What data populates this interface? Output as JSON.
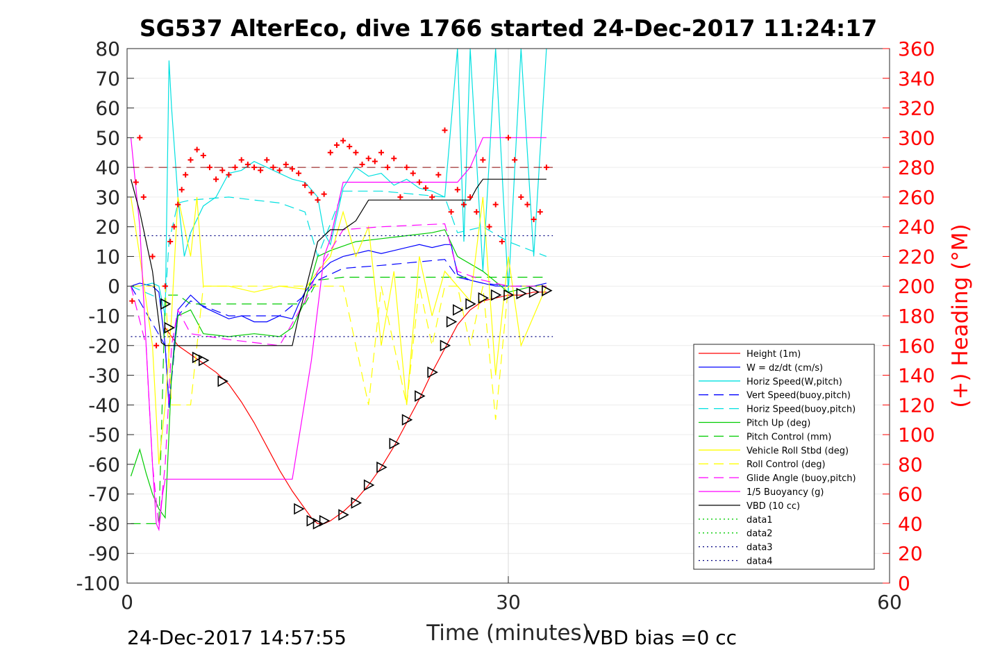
{
  "chart_data": {
    "type": "line",
    "title": "SG537 AlterEco, dive 1766 started 24-Dec-2017 11:24:17",
    "xlabel": "Time (minutes)",
    "ylabel": "",
    "y2label": "(+) Heading (°M)",
    "xlim": [
      0,
      60
    ],
    "ylim": [
      -100,
      80
    ],
    "y2lim": [
      0,
      360
    ],
    "xticks": [
      "0",
      "30",
      "60"
    ],
    "yticks": [
      "80",
      "70",
      "60",
      "50",
      "40",
      "30",
      "20",
      "10",
      "0",
      "-10",
      "-20",
      "-30",
      "-40",
      "-50",
      "-60",
      "-70",
      "-80",
      "-90",
      "-100"
    ],
    "y2ticks": [
      "360",
      "340",
      "320",
      "300",
      "280",
      "260",
      "240",
      "220",
      "200",
      "180",
      "160",
      "140",
      "120",
      "100",
      "80",
      "60",
      "40",
      "20",
      "0"
    ],
    "grid": "vertical at x=30",
    "legend_position": "bottom-right inside",
    "series": [
      {
        "name": "Height (1m)",
        "color": "#ff0000",
        "style": "solid",
        "x": [
          3,
          4,
          5,
          6,
          7,
          8,
          9,
          10,
          11,
          12,
          13,
          14,
          14.5,
          15,
          15.5,
          16,
          17,
          18,
          19,
          20,
          21,
          22,
          23,
          24,
          25,
          26,
          27,
          28,
          29,
          30,
          31,
          32,
          33
        ],
        "y": [
          -14,
          -20,
          -23,
          -26,
          -29,
          -33,
          -39,
          -46,
          -54,
          -62,
          -69,
          -75,
          -78,
          -80,
          -80,
          -79,
          -76,
          -72,
          -67,
          -61,
          -54,
          -46,
          -38,
          -29,
          -21,
          -13,
          -8,
          -5,
          -4,
          -3,
          -3,
          -2,
          -2
        ]
      },
      {
        "name": "W = dz/dt (cm/s)",
        "color": "#0000ff",
        "style": "solid",
        "x": [
          0.3,
          1,
          2,
          2.5,
          3,
          3.3,
          3.7,
          4,
          5,
          6,
          7,
          8,
          9,
          10,
          11,
          12,
          13,
          13.5,
          14,
          15,
          16,
          17,
          18,
          19,
          20,
          21,
          22,
          23,
          24,
          25,
          25.5,
          26,
          27,
          28,
          29,
          30,
          31,
          32,
          33
        ],
        "y": [
          0,
          1,
          0,
          -2,
          -20,
          -41,
          -20,
          -8,
          -3,
          -7,
          -9,
          -11,
          -10,
          -12,
          -12,
          -10,
          -11,
          -6,
          -2,
          4,
          8,
          10,
          11,
          12,
          11,
          12,
          13,
          14,
          13,
          14,
          14,
          4,
          2,
          1,
          0,
          0,
          0,
          0,
          1
        ]
      },
      {
        "name": "Horiz Speed(W,pitch)",
        "color": "#00e0e0",
        "style": "solid",
        "x": [
          0.3,
          1,
          2,
          2.5,
          3,
          3.3,
          3.5,
          4,
          4.5,
          5,
          6,
          7,
          8,
          9,
          10,
          11,
          12,
          13,
          14,
          15,
          15.5,
          16,
          17,
          18,
          19,
          20,
          21,
          22,
          23,
          24,
          25,
          26,
          26.5,
          27,
          28,
          29,
          30,
          31,
          32,
          33
        ],
        "y": [
          0,
          0,
          1,
          0,
          -10,
          76,
          60,
          30,
          10,
          18,
          27,
          30,
          38,
          39,
          42,
          40,
          38,
          36,
          35,
          30,
          18,
          14,
          33,
          40,
          37,
          38,
          34,
          36,
          33,
          32,
          30,
          80,
          15,
          80,
          5,
          80,
          -2,
          80,
          10,
          80
        ]
      },
      {
        "name": "Vert Speed(buoy,pitch)",
        "color": "#0000ff",
        "style": "dashed",
        "x": [
          0.3,
          3,
          3.3,
          4,
          5,
          8,
          12,
          14,
          15,
          17,
          20,
          25,
          26,
          28,
          30,
          33
        ],
        "y": [
          0,
          -20,
          -40,
          -10,
          -5,
          -10,
          -10,
          -3,
          2,
          6,
          7,
          9,
          3,
          1,
          0,
          0
        ]
      },
      {
        "name": "Horiz Speed(buoy,pitch)",
        "color": "#00e0e0",
        "style": "dashed",
        "x": [
          0.3,
          3,
          3.3,
          4,
          5,
          8,
          12,
          14,
          15,
          17,
          20,
          25,
          26,
          28,
          30,
          33
        ],
        "y": [
          0,
          -5,
          15,
          28,
          29,
          30,
          28,
          25,
          10,
          32,
          32,
          30,
          18,
          20,
          15,
          10
        ]
      },
      {
        "name": "Pitch Up (deg)",
        "color": "#00cc00",
        "style": "solid",
        "x": [
          0.3,
          1,
          1.5,
          2,
          2.5,
          3,
          3.5,
          4,
          5,
          6,
          8,
          10,
          12,
          13,
          14,
          15,
          16,
          18,
          20,
          22,
          24,
          25,
          26,
          28,
          30,
          32,
          33
        ],
        "y": [
          -64,
          -55,
          -63,
          -70,
          -75,
          -78,
          -30,
          -10,
          -8,
          -16,
          -17,
          -16,
          -17,
          -14,
          -5,
          10,
          12,
          15,
          16,
          17,
          18,
          19,
          10,
          5,
          -2,
          0,
          0
        ]
      },
      {
        "name": "Pitch Control (mm)",
        "color": "#00cc00",
        "style": "dashed",
        "x": [
          0.3,
          2.5,
          3,
          4,
          5,
          14,
          15,
          17,
          25,
          26,
          33
        ],
        "y": [
          -80,
          -80,
          -3,
          -3,
          -6,
          -6,
          2,
          3,
          3,
          3,
          3
        ]
      },
      {
        "name": "Vehicle Roll Stbd (deg)",
        "color": "#ffff00",
        "style": "solid",
        "x": [
          0.3,
          1,
          2,
          2.5,
          3,
          3.5,
          4,
          5,
          5.5,
          6,
          8,
          10,
          12,
          14,
          15,
          16,
          17,
          18,
          19,
          20,
          21,
          22,
          23,
          24,
          25,
          26,
          27,
          28,
          29,
          30,
          31,
          32,
          33
        ],
        "y": [
          30,
          10,
          -20,
          -60,
          -40,
          -10,
          30,
          10,
          30,
          0,
          0,
          -2,
          0,
          -1,
          5,
          10,
          25,
          10,
          20,
          -20,
          5,
          -40,
          10,
          -10,
          5,
          0,
          -5,
          30,
          -30,
          10,
          -20,
          -10,
          0
        ]
      },
      {
        "name": "Roll Control (deg)",
        "color": "#ffff00",
        "style": "dashed",
        "x": [
          0.3,
          3,
          3.5,
          4,
          5,
          6,
          14,
          15,
          17,
          18,
          19,
          20,
          21,
          22,
          23,
          24,
          25,
          26,
          27,
          28,
          29,
          30,
          33
        ],
        "y": [
          0,
          0,
          -40,
          -40,
          -40,
          0,
          0,
          0,
          0,
          -20,
          -40,
          0,
          -20,
          -40,
          0,
          -20,
          0,
          0,
          -20,
          0,
          -45,
          0,
          0
        ]
      },
      {
        "name": "Glide Angle (buoy,pitch)",
        "color": "#ff00ff",
        "style": "dashed",
        "x": [
          0.3,
          1.5,
          2,
          2.5,
          3,
          3.5,
          4,
          5,
          8,
          12,
          14,
          15,
          17,
          20,
          25,
          26,
          28,
          30,
          33
        ],
        "y": [
          0,
          -20,
          -60,
          -81,
          -60,
          -20,
          -8,
          -16,
          -18,
          -20,
          -5,
          5,
          19,
          20,
          21,
          5,
          2,
          0,
          0
        ]
      },
      {
        "name": "1/5 Buoyancy (g)",
        "color": "#ff00ff",
        "style": "solid",
        "x": [
          0.3,
          1,
          2,
          2.3,
          2.5,
          2.8,
          3,
          4,
          8,
          13,
          14.5,
          15.5,
          16,
          17,
          25,
          26,
          27,
          28,
          33
        ],
        "y": [
          50,
          20,
          -60,
          -80,
          -82,
          -70,
          -65,
          -65,
          -65,
          -65,
          -25,
          10,
          16,
          35,
          35,
          35,
          40,
          50,
          50
        ]
      },
      {
        "name": "VBD (10 cc)",
        "color": "#000000",
        "style": "solid",
        "x": [
          0.3,
          1,
          2,
          2.7,
          3,
          4,
          13,
          13.5,
          14,
          15,
          16,
          17,
          18,
          19,
          25,
          26,
          27,
          27.5,
          28,
          33
        ],
        "y": [
          36,
          25,
          5,
          -19,
          -20,
          -20,
          -20,
          -10,
          -2,
          15,
          19,
          19,
          22,
          29,
          29,
          29,
          29,
          33,
          36,
          36
        ]
      },
      {
        "name": "data1",
        "color": "#00cc00",
        "style": "dotted",
        "x": [],
        "y": []
      },
      {
        "name": "data2",
        "color": "#00cc00",
        "style": "dotted",
        "x": [],
        "y": []
      },
      {
        "name": "data3",
        "color": "#000080",
        "style": "dotted",
        "x": [
          0.3,
          33.5
        ],
        "y": [
          17,
          17
        ]
      },
      {
        "name": "data4",
        "color": "#000080",
        "style": "dotted",
        "x": [
          0.3,
          33.5
        ],
        "y": [
          -17,
          -17
        ]
      }
    ],
    "heading_reference_y2": 280,
    "heading_markers_y2": {
      "color": "#ff0000",
      "x": [
        0.4,
        0.7,
        1,
        1.3,
        2,
        2.3,
        3,
        3.4,
        3.7,
        4,
        4.3,
        4.6,
        5,
        5.5,
        6,
        6.5,
        7,
        7.5,
        8,
        8.5,
        9,
        9.5,
        10,
        10.5,
        11,
        11.5,
        12,
        12.5,
        13,
        13.5,
        14,
        14.5,
        15,
        15.5,
        16,
        16.5,
        17,
        17.5,
        18,
        18.5,
        19,
        19.5,
        20,
        20.5,
        21,
        21.5,
        22,
        22.5,
        23,
        23.5,
        24,
        24.5,
        25,
        25.5,
        26,
        26.5,
        27,
        27.5,
        28,
        28.5,
        29,
        29.5,
        30,
        30.5,
        31,
        31.5,
        32,
        32.5,
        33
      ],
      "y": [
        190,
        270,
        300,
        260,
        220,
        160,
        200,
        230,
        240,
        255,
        265,
        275,
        285,
        292,
        288,
        280,
        272,
        278,
        275,
        280,
        285,
        282,
        280,
        278,
        285,
        280,
        278,
        282,
        279,
        276,
        268,
        263,
        258,
        262,
        290,
        295,
        298,
        294,
        290,
        282,
        286,
        284,
        290,
        280,
        286,
        260,
        280,
        276,
        270,
        266,
        260,
        275,
        305,
        250,
        265,
        255,
        260,
        250,
        285,
        240,
        255,
        230,
        300,
        285,
        260,
        255,
        245,
        250,
        280
      ]
    },
    "vehicle_depth_markers": {
      "color": "#000000",
      "x": [
        3,
        3.3,
        5.5,
        6,
        7.5,
        13.5,
        14.5,
        15,
        15.5,
        17,
        18,
        19,
        20,
        21,
        22,
        23,
        24,
        25,
        25.5,
        26,
        27,
        28,
        29,
        30,
        31,
        32,
        33
      ],
      "y": [
        -6,
        -14,
        -24,
        -25,
        -32,
        -75,
        -79,
        -80,
        -79,
        -77,
        -73,
        -67,
        -61,
        -53,
        -45,
        -37,
        -29,
        -20,
        -12,
        -8,
        -6,
        -4,
        -3,
        -3,
        -2.5,
        -2,
        -1.5
      ]
    }
  },
  "footer": {
    "timestamp": "24-Dec-2017 14:57:55",
    "vbd_bias": "VBD bias =0 cc"
  }
}
